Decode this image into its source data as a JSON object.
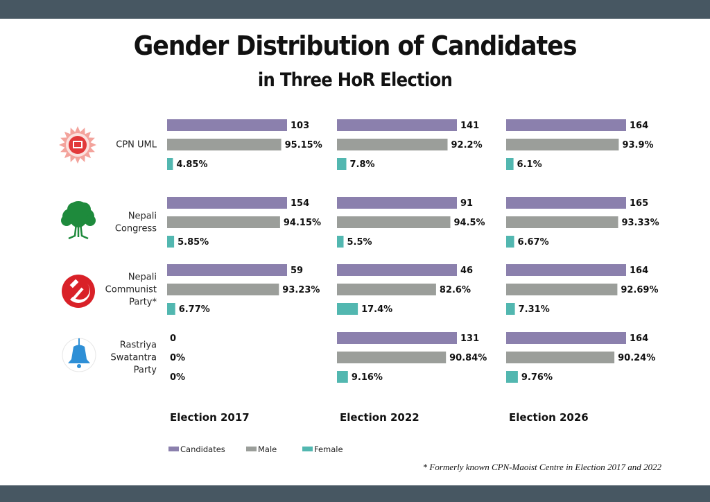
{
  "header": {
    "title": "Gender Distribution of Candidates",
    "subtitle": "in Three HoR Election"
  },
  "colors": {
    "candidates": "#8b80ad",
    "male": "#9b9e9a",
    "female": "#52b7b0",
    "band": "#475762"
  },
  "footnote": "* Formerly known CPN-Maoist Centre in Election 2017 and 2022",
  "chart_data": {
    "type": "bar",
    "orientation": "horizontal",
    "title": "Gender Distribution of Candidates",
    "subtitle": "in Three HoR Election",
    "note": "Candidate bars are drawn at full width; Male and Female bars are scaled by their percentage share.",
    "categories": [
      "Election 2017",
      "Election 2022",
      "Election 2026"
    ],
    "legend": {
      "position": "bottom-left",
      "entries": [
        {
          "key": "candidates",
          "label": "Candidates"
        },
        {
          "key": "male",
          "label": "Male"
        },
        {
          "key": "female",
          "label": "Female"
        }
      ]
    },
    "parties": [
      {
        "name": "CPN UML",
        "name_lines": [
          "CPN UML"
        ],
        "logo": "uml-sun-logo-icon",
        "elections": [
          {
            "election": "Election 2017",
            "candidates": 103,
            "male_pct": 95.15,
            "female_pct": 4.85,
            "labels": {
              "candidates": "103",
              "male": "95.15%",
              "female": "4.85%"
            }
          },
          {
            "election": "Election 2022",
            "candidates": 141,
            "male_pct": 92.2,
            "female_pct": 7.8,
            "labels": {
              "candidates": "141",
              "male": "92.2%",
              "female": "7.8%"
            }
          },
          {
            "election": "Election 2026",
            "candidates": 164,
            "male_pct": 93.9,
            "female_pct": 6.1,
            "labels": {
              "candidates": "164",
              "male": "93.9%",
              "female": "6.1%"
            }
          }
        ]
      },
      {
        "name": "Nepali Congress",
        "name_lines": [
          "Nepali",
          "Congress"
        ],
        "logo": "congress-tree-logo-icon",
        "elections": [
          {
            "election": "Election 2017",
            "candidates": 154,
            "male_pct": 94.15,
            "female_pct": 5.85,
            "labels": {
              "candidates": "154",
              "male": "94.15%",
              "female": "5.85%"
            }
          },
          {
            "election": "Election 2022",
            "candidates": 91,
            "male_pct": 94.5,
            "female_pct": 5.5,
            "labels": {
              "candidates": "91",
              "male": "94.5%",
              "female": "5.5%"
            }
          },
          {
            "election": "Election 2026",
            "candidates": 165,
            "male_pct": 93.33,
            "female_pct": 6.67,
            "labels": {
              "candidates": "165",
              "male": "93.33%",
              "female": "6.67%"
            }
          }
        ]
      },
      {
        "name": "Nepali Communist Party*",
        "name_lines": [
          "Nepali",
          "Communist",
          "Party*"
        ],
        "logo": "hammer-sickle-logo-icon",
        "elections": [
          {
            "election": "Election 2017",
            "candidates": 59,
            "male_pct": 93.23,
            "female_pct": 6.77,
            "labels": {
              "candidates": "59",
              "male": "93.23%",
              "female": "6.77%"
            }
          },
          {
            "election": "Election 2022",
            "candidates": 46,
            "male_pct": 82.6,
            "female_pct": 17.4,
            "labels": {
              "candidates": "46",
              "male": "82.6%",
              "female": "17.4%"
            }
          },
          {
            "election": "Election 2026",
            "candidates": 164,
            "male_pct": 92.69,
            "female_pct": 7.31,
            "labels": {
              "candidates": "164",
              "male": "92.69%",
              "female": "7.31%"
            }
          }
        ]
      },
      {
        "name": "Rastriya Swatantra Party",
        "name_lines": [
          "Rastriya",
          "Swatantra",
          "Party"
        ],
        "logo": "bell-logo-icon",
        "elections": [
          {
            "election": "Election 2017",
            "candidates": 0,
            "male_pct": 0,
            "female_pct": 0,
            "labels": {
              "candidates": "0",
              "male": "0%",
              "female": "0%"
            }
          },
          {
            "election": "Election 2022",
            "candidates": 131,
            "male_pct": 90.84,
            "female_pct": 9.16,
            "labels": {
              "candidates": "131",
              "male": "90.84%",
              "female": "9.16%"
            }
          },
          {
            "election": "Election 2026",
            "candidates": 164,
            "male_pct": 90.24,
            "female_pct": 9.76,
            "labels": {
              "candidates": "164",
              "male": "90.24%",
              "female": "9.76%"
            }
          }
        ]
      }
    ]
  }
}
